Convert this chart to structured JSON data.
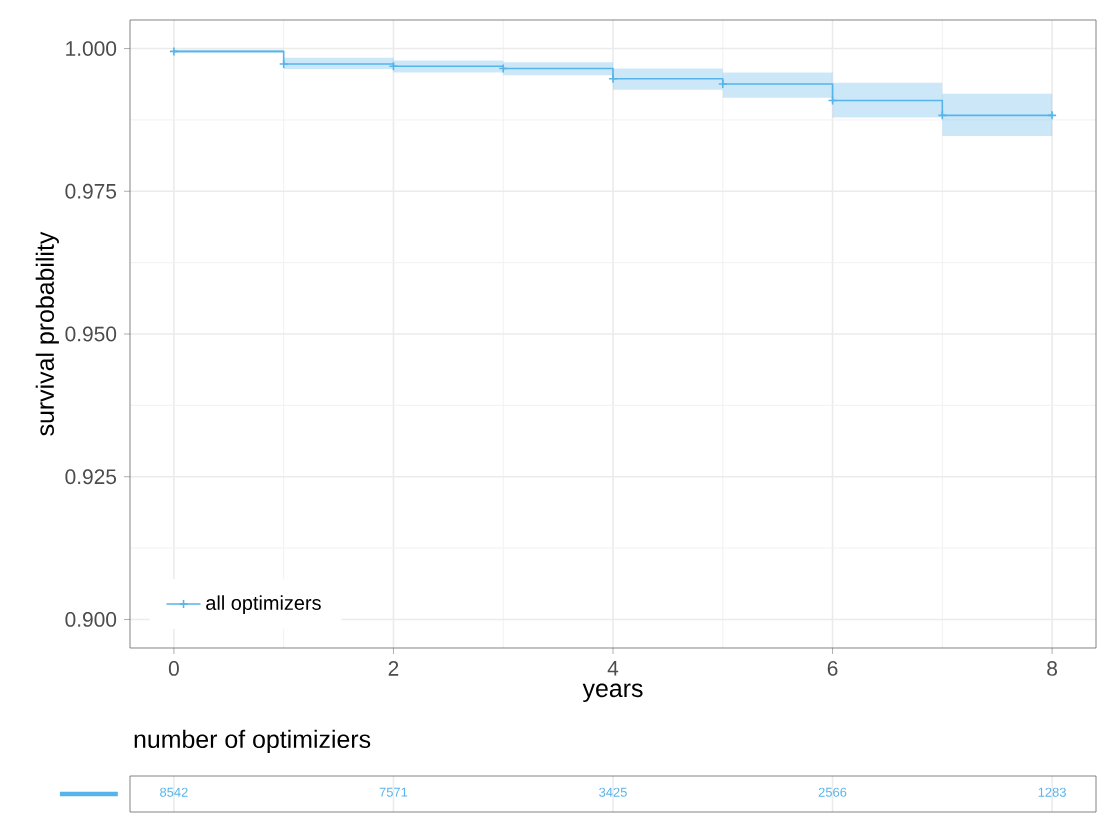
{
  "chart_data": [
    {
      "type": "step",
      "x": [
        0,
        1,
        2,
        3,
        4,
        5,
        6,
        7,
        8
      ],
      "series": [
        {
          "name": "all optimizers",
          "color": "#56b4e9",
          "values": [
            0.9995,
            0.9973,
            0.9969,
            0.9965,
            0.9947,
            0.9938,
            0.9909,
            0.9883,
            0.9883
          ],
          "lower": [
            0.9992,
            0.9964,
            0.9958,
            0.9953,
            0.9928,
            0.9914,
            0.9879,
            0.9847,
            0.9847
          ],
          "upper": [
            0.9998,
            0.9984,
            0.9979,
            0.9976,
            0.9965,
            0.9958,
            0.994,
            0.9921,
            0.9921
          ]
        }
      ],
      "xlabel": "years",
      "ylabel": "survival probability",
      "xlim": [
        -0.4,
        8.4
      ],
      "ylim": [
        0.895,
        1.005
      ],
      "xticks": [
        0,
        2,
        4,
        6,
        8
      ],
      "yticks": [
        {
          "value": 0.9,
          "label": "0.900"
        },
        {
          "value": 0.925,
          "label": "0.925"
        },
        {
          "value": 0.95,
          "label": "0.950"
        },
        {
          "value": 0.975,
          "label": "0.975"
        },
        {
          "value": 1.0,
          "label": "1.000"
        }
      ],
      "grid": true,
      "legend": "bottom left",
      "marker": "cross"
    },
    {
      "type": "other",
      "title": "number of optimiziers",
      "values": [
        8542,
        7571,
        3425,
        2566,
        1283
      ],
      "color": "#56b4e9",
      "data_labels": true
    }
  ]
}
